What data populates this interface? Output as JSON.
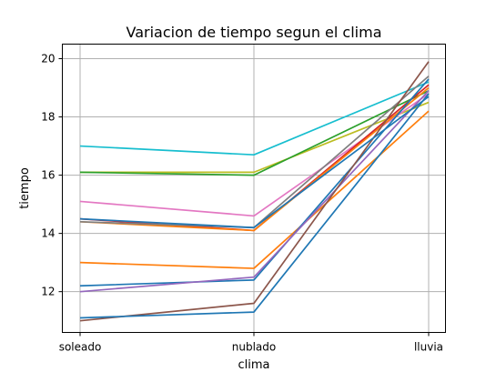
{
  "chart_data": {
    "type": "line",
    "title": "Variacion de tiempo segun el clima",
    "xlabel": "clima",
    "ylabel": "tiempo",
    "categories": [
      "soleado",
      "nublado",
      "lluvia"
    ],
    "ylim": [
      10.6,
      20.5
    ],
    "yticks": [
      12,
      14,
      16,
      18,
      20
    ],
    "ytick_labels": [
      "12",
      "14",
      "16",
      "18",
      "20"
    ],
    "grid": true,
    "series": [
      {
        "values": [
          17.0,
          16.7,
          19.2
        ],
        "color": "#17becf"
      },
      {
        "values": [
          16.1,
          16.1,
          18.5
        ],
        "color": "#bcbd22"
      },
      {
        "values": [
          16.1,
          16.0,
          18.9
        ],
        "color": "#2ca02c"
      },
      {
        "values": [
          15.1,
          14.6,
          18.8
        ],
        "color": "#e377c2"
      },
      {
        "values": [
          14.5,
          14.1,
          19.1
        ],
        "color": "#d62728"
      },
      {
        "values": [
          14.4,
          14.1,
          19.0
        ],
        "color": "#ff7f0e"
      },
      {
        "values": [
          14.4,
          14.2,
          19.4
        ],
        "color": "#7f7f7f"
      },
      {
        "values": [
          13.0,
          12.8,
          18.2
        ],
        "color": "#ff7f0e"
      },
      {
        "values": [
          12.2,
          12.4,
          19.3
        ],
        "color": "#1f77b4"
      },
      {
        "values": [
          12.0,
          12.5,
          18.9
        ],
        "color": "#9467bd"
      },
      {
        "values": [
          11.0,
          11.6,
          19.9
        ],
        "color": "#8c564b"
      },
      {
        "values": [
          11.1,
          11.3,
          18.8
        ],
        "color": "#1f77b4"
      },
      {
        "values": [
          14.5,
          14.2,
          18.7
        ],
        "color": "#1f77b4"
      }
    ]
  }
}
